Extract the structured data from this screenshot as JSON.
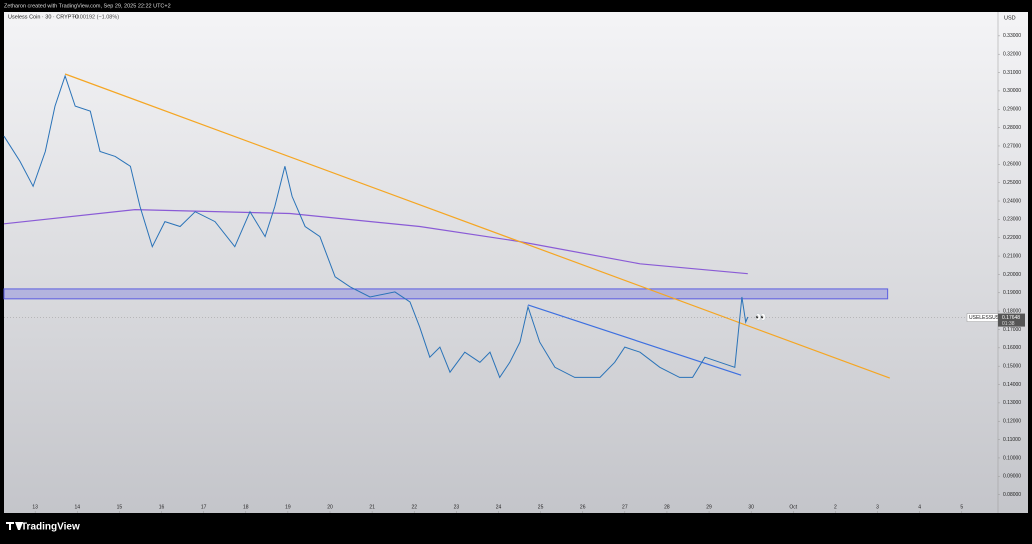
{
  "header": {
    "attribution": "Zetharon created with TradingView.com, Sep 29, 2025 22:22 UTC+2"
  },
  "footer": {
    "brand": "TradingView"
  },
  "chart_data": {
    "type": "line",
    "title": "Useless Coin · 30 · CRYPTO",
    "change": "−0.00192 (−1.08%)",
    "y_unit": "USD",
    "annotation": "👀",
    "xlim": [
      12.26,
      35.86
    ],
    "ylim": [
      0.07,
      0.343
    ],
    "xticks": [
      13,
      14,
      15,
      16,
      17,
      18,
      19,
      20,
      21,
      22,
      23,
      24,
      25,
      26,
      27,
      28,
      29,
      30,
      {
        "value": 31,
        "label": "Oct"
      },
      {
        "value": 32,
        "label": "2"
      },
      {
        "value": 33,
        "label": "3"
      },
      {
        "value": 34,
        "label": "4"
      },
      {
        "value": 35,
        "label": "5"
      }
    ],
    "yticks": [
      {
        "value": 0.08,
        "label": "0.08000"
      },
      {
        "value": 0.09,
        "label": "0.09000"
      },
      {
        "value": 0.1,
        "label": "0.10000"
      },
      {
        "value": 0.11,
        "label": "0.11000"
      },
      {
        "value": 0.12,
        "label": "0.12000"
      },
      {
        "value": 0.13,
        "label": "0.13000"
      },
      {
        "value": 0.14,
        "label": "0.14000"
      },
      {
        "value": 0.15,
        "label": "0.15000"
      },
      {
        "value": 0.16,
        "label": "0.16000"
      },
      {
        "value": 0.17,
        "label": "0.17000"
      },
      {
        "value": 0.18,
        "label": "0.18000"
      },
      {
        "value": 0.19,
        "label": "0.19000"
      },
      {
        "value": 0.2,
        "label": "0.20000"
      },
      {
        "value": 0.21,
        "label": "0.21000"
      },
      {
        "value": 0.22,
        "label": "0.22000"
      },
      {
        "value": 0.23,
        "label": "0.23000"
      },
      {
        "value": 0.24,
        "label": "0.24000"
      },
      {
        "value": 0.25,
        "label": "0.25000"
      },
      {
        "value": 0.26,
        "label": "0.26000"
      },
      {
        "value": 0.27,
        "label": "0.27000"
      },
      {
        "value": 0.28,
        "label": "0.28000"
      },
      {
        "value": 0.29,
        "label": "0.29000"
      },
      {
        "value": 0.3,
        "label": "0.30000"
      },
      {
        "value": 0.31,
        "label": "0.31000"
      },
      {
        "value": 0.32,
        "label": "0.32000"
      },
      {
        "value": 0.33,
        "label": "0.33000"
      }
    ],
    "series": [
      {
        "name": "USELESSUSD",
        "color": "#2a73b8",
        "last_value": 0.17648,
        "countdown": "01:38",
        "x": [
          12.26,
          12.64,
          12.95,
          13.24,
          13.47,
          13.71,
          13.95,
          14.31,
          14.54,
          14.9,
          15.26,
          15.49,
          15.78,
          16.08,
          16.44,
          16.8,
          17.27,
          17.74,
          18.1,
          18.46,
          18.69,
          18.93,
          19.1,
          19.41,
          19.76,
          20.12,
          20.48,
          20.95,
          21.54,
          21.9,
          22.13,
          22.37,
          22.61,
          22.85,
          23.2,
          23.56,
          23.8,
          24.03,
          24.27,
          24.51,
          24.7,
          24.98,
          25.34,
          25.81,
          26.41,
          26.76,
          27.0,
          27.36,
          27.83,
          28.3,
          28.61,
          28.9,
          29.26,
          29.61,
          29.78,
          29.87,
          29.92
        ],
        "values": [
          0.2753,
          0.2616,
          0.248,
          0.267,
          0.2917,
          0.3081,
          0.2917,
          0.289,
          0.267,
          0.2643,
          0.2589,
          0.237,
          0.2151,
          0.2288,
          0.2261,
          0.2342,
          0.2288,
          0.2151,
          0.2342,
          0.2206,
          0.237,
          0.2589,
          0.2425,
          0.2261,
          0.2206,
          0.1987,
          0.1932,
          0.1877,
          0.1905,
          0.185,
          0.1713,
          0.1549,
          0.1604,
          0.1467,
          0.1576,
          0.1521,
          0.1576,
          0.1439,
          0.1521,
          0.1631,
          0.1823,
          0.1631,
          0.1494,
          0.1439,
          0.1439,
          0.1521,
          0.1604,
          0.1576,
          0.1494,
          0.1439,
          0.1439,
          0.1549,
          0.1521,
          0.1494,
          0.1877,
          0.174,
          0.1768
        ]
      },
      {
        "color": "#8a5bd6",
        "x": [
          12.26,
          15.37,
          19.05,
          22.13,
          24.51,
          27.36,
          29.92
        ],
        "values": [
          0.2276,
          0.2353,
          0.2332,
          0.2261,
          0.2179,
          0.2058,
          0.2004
        ]
      },
      {
        "color": "#f5a623",
        "x": [
          13.71,
          33.29
        ],
        "values": [
          0.3092,
          0.1435
        ]
      },
      {
        "color": "#3d6fe0",
        "x": [
          24.7,
          29.76
        ],
        "values": [
          0.1834,
          0.1451
        ]
      }
    ],
    "zone": {
      "color": "#5c5ee0",
      "x": [
        12.26,
        33.24
      ],
      "values": [
        0.1867,
        0.1921
      ]
    }
  }
}
